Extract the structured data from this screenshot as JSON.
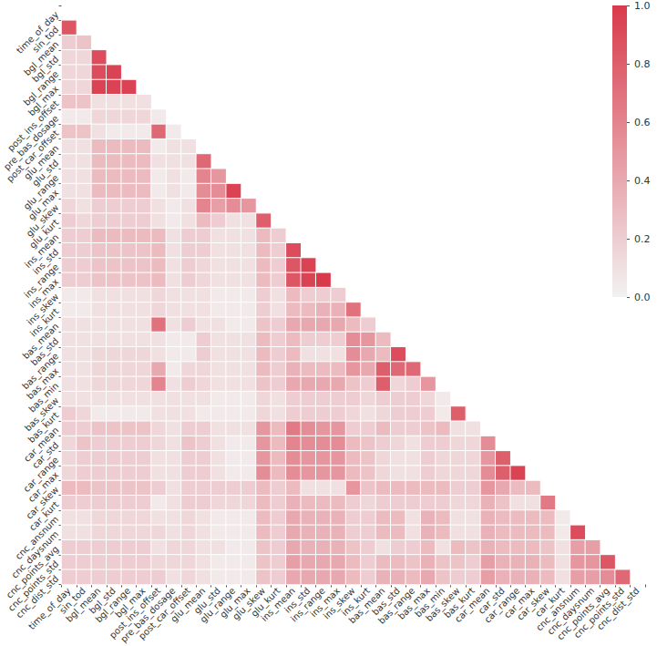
{
  "chart_data": {
    "type": "heatmap",
    "categories": [
      "time_of_day",
      "sin_tod",
      "bgl_mean",
      "bgl_std",
      "bgl_range",
      "bgl_max",
      "post_ins_offset",
      "pre_bas_dosage",
      "post_car_offset",
      "glu_mean",
      "glu_std",
      "glu_range",
      "glu_max",
      "glu_skew",
      "glu_kurt",
      "ins_mean",
      "ins_std",
      "ins_range",
      "ins_max",
      "ins_skew",
      "ins_kurt",
      "bas_mean",
      "bas_std",
      "bas_range",
      "bas_max",
      "bas_min",
      "bas_skew",
      "bas_kurt",
      "car_mean",
      "car_std",
      "car_range",
      "car_max",
      "car_skew",
      "car_kurt",
      "cnc_ansnum",
      "cnc_daysnum",
      "cnc_points_avg",
      "cnc_points_std",
      "cnc_dist_std"
    ],
    "values": [
      [],
      [
        0.85
      ],
      [
        0.2,
        0.25
      ],
      [
        0.15,
        0.15,
        0.9
      ],
      [
        0.15,
        0.15,
        0.9,
        0.95
      ],
      [
        0.15,
        0.15,
        0.95,
        0.95,
        0.95
      ],
      [
        0.25,
        0.25,
        0.1,
        0.1,
        0.1,
        0.1
      ],
      [
        0.05,
        0.05,
        0.15,
        0.15,
        0.15,
        0.15,
        0.05
      ],
      [
        0.25,
        0.25,
        0.1,
        0.05,
        0.05,
        0.05,
        0.75,
        0.05
      ],
      [
        0.1,
        0.1,
        0.3,
        0.3,
        0.3,
        0.3,
        0.05,
        0.1,
        0.1
      ],
      [
        0.1,
        0.1,
        0.3,
        0.3,
        0.3,
        0.3,
        0.1,
        0.1,
        0.1,
        0.75
      ],
      [
        0.1,
        0.1,
        0.3,
        0.3,
        0.3,
        0.3,
        0.05,
        0.1,
        0.05,
        0.6,
        0.5
      ],
      [
        0.1,
        0.1,
        0.3,
        0.3,
        0.3,
        0.3,
        0.05,
        0.1,
        0.05,
        0.55,
        0.55,
        0.95
      ],
      [
        0.15,
        0.1,
        0.2,
        0.2,
        0.2,
        0.2,
        0.1,
        0.05,
        0.1,
        0.6,
        0.45,
        0.55,
        0.5
      ],
      [
        0.2,
        0.15,
        0.2,
        0.2,
        0.2,
        0.2,
        0.1,
        0.05,
        0.1,
        0.3,
        0.2,
        0.1,
        0.1,
        0.8
      ],
      [
        0.2,
        0.2,
        0.3,
        0.3,
        0.3,
        0.3,
        0.3,
        0.1,
        0.2,
        0.2,
        0.1,
        0.1,
        0.1,
        0.3,
        0.2
      ],
      [
        0.2,
        0.2,
        0.25,
        0.25,
        0.25,
        0.25,
        0.3,
        0.1,
        0.2,
        0.2,
        0.1,
        0.1,
        0.1,
        0.3,
        0.2,
        0.9
      ],
      [
        0.2,
        0.2,
        0.25,
        0.25,
        0.25,
        0.25,
        0.3,
        0.1,
        0.2,
        0.15,
        0.1,
        0.1,
        0.1,
        0.3,
        0.2,
        0.85,
        0.95
      ],
      [
        0.2,
        0.2,
        0.25,
        0.25,
        0.25,
        0.25,
        0.3,
        0.1,
        0.2,
        0.15,
        0.1,
        0.1,
        0.1,
        0.3,
        0.2,
        0.85,
        0.95,
        1.0
      ],
      [
        0.05,
        0.05,
        0.1,
        0.1,
        0.1,
        0.1,
        0.15,
        0.1,
        0.1,
        0.1,
        0.05,
        0.05,
        0.05,
        0.2,
        0.1,
        0.3,
        0.2,
        0.2,
        0.2
      ],
      [
        0.05,
        0.05,
        0.1,
        0.1,
        0.1,
        0.1,
        0.15,
        0.1,
        0.1,
        0.1,
        0.05,
        0.05,
        0.05,
        0.2,
        0.1,
        0.3,
        0.3,
        0.35,
        0.35,
        0.7
      ],
      [
        0.1,
        0.1,
        0.1,
        0.1,
        0.1,
        0.1,
        0.7,
        0.1,
        0.2,
        0.1,
        0.1,
        0.05,
        0.05,
        0.25,
        0.2,
        0.4,
        0.4,
        0.4,
        0.4,
        0.3,
        0.2
      ],
      [
        0.1,
        0.1,
        0.1,
        0.1,
        0.1,
        0.1,
        0.1,
        0.05,
        0.05,
        0.2,
        0.1,
        0.1,
        0.1,
        0.3,
        0.2,
        0.3,
        0.2,
        0.2,
        0.2,
        0.55,
        0.5,
        0.3
      ],
      [
        0.1,
        0.1,
        0.15,
        0.15,
        0.15,
        0.15,
        0.1,
        0.05,
        0.05,
        0.2,
        0.1,
        0.1,
        0.1,
        0.3,
        0.2,
        0.3,
        0.1,
        0.1,
        0.1,
        0.55,
        0.4,
        0.3,
        0.9
      ],
      [
        0.1,
        0.1,
        0.15,
        0.15,
        0.15,
        0.15,
        0.4,
        0.05,
        0.15,
        0.15,
        0.1,
        0.1,
        0.1,
        0.3,
        0.2,
        0.35,
        0.3,
        0.3,
        0.3,
        0.5,
        0.4,
        0.8,
        0.75,
        0.75
      ],
      [
        0.1,
        0.1,
        0.15,
        0.15,
        0.15,
        0.15,
        0.6,
        0.1,
        0.2,
        0.15,
        0.1,
        0.1,
        0.1,
        0.25,
        0.2,
        0.4,
        0.4,
        0.4,
        0.4,
        0.25,
        0.2,
        0.8,
        0.15,
        0.2,
        0.5
      ],
      [
        0.1,
        0.1,
        0.1,
        0.1,
        0.1,
        0.1,
        0.1,
        0.1,
        0.1,
        0.1,
        0.05,
        0.05,
        0.05,
        0.15,
        0.1,
        0.2,
        0.2,
        0.2,
        0.2,
        0.2,
        0.15,
        0.2,
        0.2,
        0.2,
        0.15,
        0.05
      ],
      [
        0.2,
        0.15,
        0.05,
        0.05,
        0.05,
        0.05,
        0.1,
        0.1,
        0.1,
        0.05,
        0.05,
        0.05,
        0.05,
        0.15,
        0.1,
        0.2,
        0.2,
        0.2,
        0.2,
        0.15,
        0.1,
        0.15,
        0.2,
        0.2,
        0.2,
        0.05,
        0.8
      ],
      [
        0.2,
        0.2,
        0.25,
        0.25,
        0.25,
        0.25,
        0.15,
        0.1,
        0.2,
        0.2,
        0.1,
        0.1,
        0.1,
        0.5,
        0.3,
        0.65,
        0.55,
        0.5,
        0.5,
        0.2,
        0.2,
        0.3,
        0.2,
        0.2,
        0.25,
        0.3,
        0.1,
        0.1
      ],
      [
        0.15,
        0.25,
        0.2,
        0.2,
        0.2,
        0.2,
        0.15,
        0.1,
        0.25,
        0.2,
        0.1,
        0.05,
        0.05,
        0.5,
        0.3,
        0.6,
        0.55,
        0.55,
        0.55,
        0.3,
        0.25,
        0.2,
        0.15,
        0.1,
        0.2,
        0.2,
        0.15,
        0.15,
        0.55
      ],
      [
        0.15,
        0.2,
        0.2,
        0.2,
        0.2,
        0.2,
        0.1,
        0.1,
        0.2,
        0.2,
        0.1,
        0.05,
        0.05,
        0.5,
        0.3,
        0.55,
        0.5,
        0.5,
        0.5,
        0.3,
        0.25,
        0.15,
        0.1,
        0.1,
        0.2,
        0.15,
        0.15,
        0.15,
        0.5,
        0.8
      ],
      [
        0.15,
        0.2,
        0.2,
        0.2,
        0.2,
        0.2,
        0.1,
        0.1,
        0.2,
        0.2,
        0.1,
        0.05,
        0.05,
        0.55,
        0.3,
        0.55,
        0.5,
        0.5,
        0.5,
        0.3,
        0.25,
        0.15,
        0.1,
        0.1,
        0.2,
        0.15,
        0.15,
        0.15,
        0.55,
        0.8,
        0.95
      ],
      [
        0.3,
        0.3,
        0.25,
        0.25,
        0.25,
        0.25,
        0.2,
        0.1,
        0.2,
        0.2,
        0.2,
        0.2,
        0.2,
        0.3,
        0.2,
        0.3,
        0.1,
        0.1,
        0.1,
        0.5,
        0.25,
        0.3,
        0.3,
        0.3,
        0.3,
        0.3,
        0.2,
        0.2,
        0.5,
        0.4,
        0.3,
        0.3
      ],
      [
        0.2,
        0.2,
        0.2,
        0.2,
        0.2,
        0.2,
        0.05,
        0.1,
        0.2,
        0.2,
        0.15,
        0.15,
        0.15,
        0.3,
        0.2,
        0.35,
        0.3,
        0.3,
        0.3,
        0.2,
        0.15,
        0.2,
        0.2,
        0.2,
        0.2,
        0.2,
        0.15,
        0.15,
        0.35,
        0.25,
        0.1,
        0.1,
        0.65
      ],
      [
        0.1,
        0.1,
        0.15,
        0.15,
        0.15,
        0.15,
        0.1,
        0.1,
        0.15,
        0.1,
        0.05,
        0.05,
        0.05,
        0.3,
        0.2,
        0.4,
        0.35,
        0.35,
        0.35,
        0.2,
        0.2,
        0.3,
        0.3,
        0.1,
        0.35,
        0.3,
        0.1,
        0.1,
        0.35,
        0.3,
        0.3,
        0.3,
        0.3,
        0.05
      ],
      [
        0.1,
        0.1,
        0.15,
        0.15,
        0.15,
        0.15,
        0.15,
        0.1,
        0.15,
        0.1,
        0.05,
        0.05,
        0.05,
        0.3,
        0.2,
        0.4,
        0.35,
        0.35,
        0.35,
        0.2,
        0.2,
        0.3,
        0.3,
        0.1,
        0.35,
        0.3,
        0.1,
        0.1,
        0.35,
        0.3,
        0.3,
        0.3,
        0.3,
        0.05,
        0.9
      ],
      [
        0.2,
        0.2,
        0.2,
        0.2,
        0.2,
        0.2,
        0.1,
        0.15,
        0.15,
        0.1,
        0.1,
        0.05,
        0.05,
        0.25,
        0.2,
        0.4,
        0.35,
        0.35,
        0.35,
        0.25,
        0.2,
        0.1,
        0.2,
        0.2,
        0.3,
        0.1,
        0.3,
        0.25,
        0.35,
        0.3,
        0.3,
        0.3,
        0.25,
        0.1,
        0.45,
        0.45
      ],
      [
        0.2,
        0.2,
        0.2,
        0.2,
        0.2,
        0.2,
        0.15,
        0.15,
        0.15,
        0.1,
        0.05,
        0.05,
        0.05,
        0.25,
        0.2,
        0.45,
        0.4,
        0.4,
        0.4,
        0.3,
        0.2,
        0.3,
        0.3,
        0.25,
        0.35,
        0.25,
        0.25,
        0.2,
        0.45,
        0.35,
        0.35,
        0.35,
        0.3,
        0.1,
        0.5,
        0.5,
        0.85
      ],
      [
        0.2,
        0.2,
        0.2,
        0.2,
        0.2,
        0.2,
        0.2,
        0.1,
        0.15,
        0.1,
        0.05,
        0.05,
        0.05,
        0.25,
        0.2,
        0.4,
        0.4,
        0.4,
        0.4,
        0.3,
        0.2,
        0.35,
        0.35,
        0.3,
        0.4,
        0.25,
        0.2,
        0.2,
        0.45,
        0.35,
        0.35,
        0.35,
        0.3,
        0.1,
        0.45,
        0.45,
        0.55,
        0.75
      ]
    ],
    "colorbar": {
      "range": [
        0,
        1
      ],
      "ticks": [
        {
          "value": 0,
          "label": "0.0"
        },
        {
          "value": 0.2,
          "label": "0.2"
        },
        {
          "value": 0.4,
          "label": "0.4"
        },
        {
          "value": 0.6,
          "label": "0.6"
        },
        {
          "value": 0.8,
          "label": "0.8"
        },
        {
          "value": 1,
          "label": "1.0"
        }
      ]
    }
  }
}
